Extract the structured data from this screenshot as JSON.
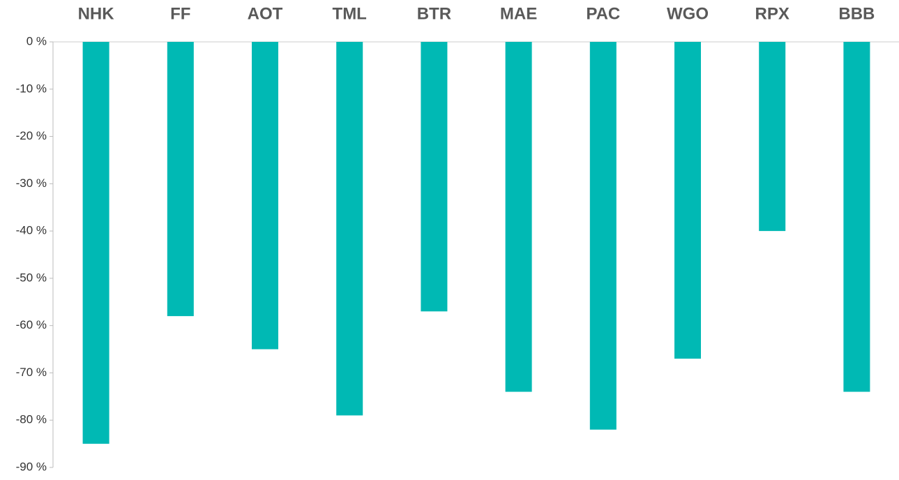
{
  "chart_data": {
    "type": "bar",
    "categories": [
      "NHK",
      "FF",
      "AOT",
      "TML",
      "BTR",
      "MAE",
      "PAC",
      "WGO",
      "RPX",
      "BBB"
    ],
    "values": [
      -85,
      -58,
      -65,
      -79,
      -57,
      -74,
      -82,
      -67,
      -40,
      -74
    ],
    "color": "#00b9b4",
    "ylim": [
      -90,
      0
    ],
    "yticks": [
      {
        "value": 0,
        "label": "0 %"
      },
      {
        "value": -10,
        "label": "-10 %"
      },
      {
        "value": -20,
        "label": "-20 %"
      },
      {
        "value": -30,
        "label": "-30 %"
      },
      {
        "value": -40,
        "label": "-40 %"
      },
      {
        "value": -50,
        "label": "-50 %"
      },
      {
        "value": -60,
        "label": "-60 %"
      },
      {
        "value": -70,
        "label": "-70 %"
      },
      {
        "value": -80,
        "label": "-80 %"
      },
      {
        "value": -90,
        "label": "-90 %"
      }
    ],
    "grid": false
  }
}
